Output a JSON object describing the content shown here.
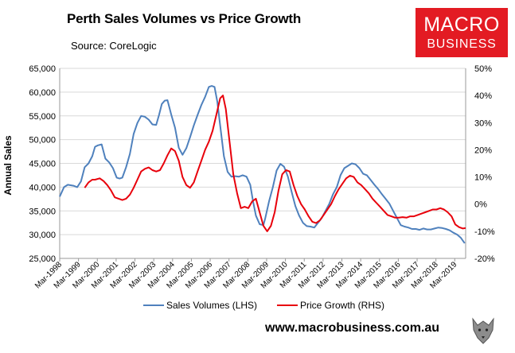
{
  "header": {
    "title": "Perth Sales Volumes vs Price Growth",
    "source": "Source: CoreLogic",
    "logo_line1": "MACRO",
    "logo_line2": "BUSINESS"
  },
  "footer": {
    "url": "www.macrobusiness.com.au"
  },
  "colors": {
    "sales": "#4f81bd",
    "price": "#e8000b",
    "logo_bg": "#e31b23"
  },
  "chart_data": {
    "type": "line",
    "title": "Perth Sales Volumes vs Price Growth",
    "ylabel": "Annual Sales",
    "ylim": [
      25000,
      65000
    ],
    "y2lim": [
      -20,
      50
    ],
    "xlim": [
      1998.17,
      2019.75
    ],
    "yticks": [
      "25,000",
      "30,000",
      "35,000",
      "40,000",
      "45,000",
      "50,000",
      "55,000",
      "60,000",
      "65,000"
    ],
    "y2ticks": [
      "-20%",
      "-10%",
      "0%",
      "10%",
      "20%",
      "30%",
      "40%",
      "50%"
    ],
    "xticks": [
      "Mar-1998",
      "Mar-1999",
      "Mar-2000",
      "Mar-2001",
      "Mar-2002",
      "Mar-2003",
      "Mar-2004",
      "Mar-2005",
      "Mar-2006",
      "Mar-2007",
      "Mar-2008",
      "Mar-2009",
      "Mar-2010",
      "Mar-2011",
      "Mar-2012",
      "Mar-2013",
      "Mar-2014",
      "Mar-2015",
      "Mar-2016",
      "Mar-2017",
      "Mar-2018",
      "Mar-2019"
    ],
    "series": [
      {
        "name": "Sales Volumes (LHS)",
        "axis": "left",
        "x": [
          1998.17,
          1998.4,
          1998.6,
          1998.9,
          1999.1,
          1999.3,
          1999.5,
          1999.7,
          1999.9,
          2000.05,
          2000.2,
          2000.4,
          2000.6,
          2000.8,
          2001.0,
          2001.2,
          2001.35,
          2001.5,
          2001.7,
          2001.9,
          2002.1,
          2002.3,
          2002.5,
          2002.7,
          2002.9,
          2003.1,
          2003.3,
          2003.45,
          2003.6,
          2003.75,
          2003.9,
          2004.1,
          2004.3,
          2004.5,
          2004.7,
          2004.9,
          2005.1,
          2005.3,
          2005.5,
          2005.7,
          2005.9,
          2006.1,
          2006.25,
          2006.4,
          2006.55,
          2006.7,
          2006.9,
          2007.1,
          2007.3,
          2007.5,
          2007.7,
          2007.9,
          2008.1,
          2008.3,
          2008.45,
          2008.6,
          2008.8,
          2009.0,
          2009.1,
          2009.3,
          2009.5,
          2009.7,
          2009.9,
          2010.1,
          2010.3,
          2010.5,
          2010.7,
          2010.9,
          2011.1,
          2011.3,
          2011.5,
          2011.7,
          2011.9,
          2012.1,
          2012.3,
          2012.5,
          2012.7,
          2012.9,
          2013.1,
          2013.3,
          2013.5,
          2013.7,
          2013.9,
          2014.1,
          2014.3,
          2014.5,
          2014.7,
          2014.9,
          2015.1,
          2015.3,
          2015.5,
          2015.7,
          2015.9,
          2016.1,
          2016.3,
          2016.5,
          2016.7,
          2016.9,
          2017.1,
          2017.3,
          2017.5,
          2017.7,
          2017.9,
          2018.1,
          2018.3,
          2018.5,
          2018.7,
          2018.9,
          2019.1,
          2019.3,
          2019.5,
          2019.7
        ],
        "values": [
          38000,
          40000,
          40500,
          40300,
          40000,
          41200,
          44200,
          45000,
          46500,
          48500,
          48800,
          49000,
          46000,
          45200,
          44000,
          42000,
          41800,
          42000,
          44200,
          47000,
          51200,
          53500,
          55000,
          54800,
          54200,
          53200,
          53100,
          55200,
          57500,
          58200,
          58300,
          55300,
          52500,
          48300,
          46800,
          48200,
          50500,
          53000,
          55200,
          57300,
          59000,
          61100,
          61300,
          61100,
          58000,
          53000,
          46500,
          43200,
          42200,
          42300,
          42200,
          42500,
          42200,
          40500,
          37000,
          34000,
          32200,
          32000,
          33500,
          37000,
          40000,
          43500,
          44900,
          44300,
          42200,
          39000,
          36000,
          34000,
          32500,
          31800,
          31700,
          31500,
          32500,
          33500,
          35000,
          36500,
          38500,
          40000,
          42500,
          44000,
          44500,
          45000,
          44800,
          44000,
          42800,
          42500,
          41500,
          40500,
          39600,
          38500,
          37500,
          36500,
          35000,
          33500,
          32000,
          31700,
          31500,
          31200,
          31200,
          31000,
          31300,
          31100,
          31100,
          31300,
          31500,
          31400,
          31200,
          30900,
          30400,
          30000,
          29300,
          28200
        ]
      },
      {
        "name": "Price Growth (RHS)",
        "axis": "right",
        "x": [
          1999.5,
          1999.7,
          1999.9,
          2000.05,
          2000.3,
          2000.5,
          2000.7,
          2000.9,
          2001.1,
          2001.3,
          2001.5,
          2001.7,
          2001.9,
          2002.1,
          2002.3,
          2002.5,
          2002.7,
          2002.9,
          2003.1,
          2003.3,
          2003.5,
          2003.7,
          2003.9,
          2004.1,
          2004.3,
          2004.5,
          2004.7,
          2004.9,
          2005.1,
          2005.3,
          2005.5,
          2005.7,
          2005.9,
          2006.1,
          2006.3,
          2006.5,
          2006.7,
          2006.85,
          2007.0,
          2007.2,
          2007.4,
          2007.6,
          2007.8,
          2008.0,
          2008.2,
          2008.4,
          2008.6,
          2008.8,
          2009.0,
          2009.2,
          2009.4,
          2009.6,
          2009.8,
          2010.0,
          2010.2,
          2010.4,
          2010.6,
          2010.8,
          2011.0,
          2011.2,
          2011.4,
          2011.6,
          2011.8,
          2012.0,
          2012.2,
          2012.4,
          2012.6,
          2012.8,
          2013.0,
          2013.2,
          2013.4,
          2013.6,
          2013.8,
          2014.0,
          2014.2,
          2014.4,
          2014.6,
          2014.8,
          2015.0,
          2015.2,
          2015.4,
          2015.6,
          2015.8,
          2016.0,
          2016.2,
          2016.4,
          2016.6,
          2016.8,
          2017.0,
          2017.2,
          2017.4,
          2017.6,
          2017.8,
          2018.0,
          2018.2,
          2018.4,
          2018.6,
          2018.8,
          2019.0,
          2019.2,
          2019.4,
          2019.6,
          2019.75
        ],
        "values": [
          6,
          8,
          9,
          9,
          9.5,
          8.5,
          7,
          5,
          2.5,
          2,
          1.5,
          2,
          3.5,
          6,
          9,
          12,
          13,
          13.5,
          12.5,
          12,
          12.5,
          15,
          18,
          20.5,
          19.5,
          16,
          10,
          7,
          6,
          8,
          12,
          16,
          20,
          23,
          27,
          33,
          39,
          40,
          35,
          23,
          11,
          4,
          -1.5,
          -1,
          -1.5,
          1,
          2,
          -3,
          -8,
          -10,
          -8,
          -3,
          5,
          11,
          12.5,
          12,
          7,
          3,
          0,
          -2,
          -4.5,
          -6.5,
          -7,
          -6,
          -4,
          -2,
          0,
          3,
          5.5,
          7.5,
          9.5,
          10.5,
          10,
          8,
          7,
          5.5,
          4,
          2,
          0.5,
          -1,
          -2.5,
          -4,
          -4.5,
          -5,
          -5,
          -4.8,
          -5,
          -4.5,
          -4.5,
          -4,
          -3.5,
          -3,
          -2.5,
          -2,
          -2,
          -1.5,
          -2,
          -3,
          -4.5,
          -7.5,
          -8.5,
          -9,
          -8.8
        ]
      }
    ],
    "legend": [
      "Sales Volumes (LHS)",
      "Price Growth (RHS)"
    ],
    "legend_position": "bottom"
  }
}
